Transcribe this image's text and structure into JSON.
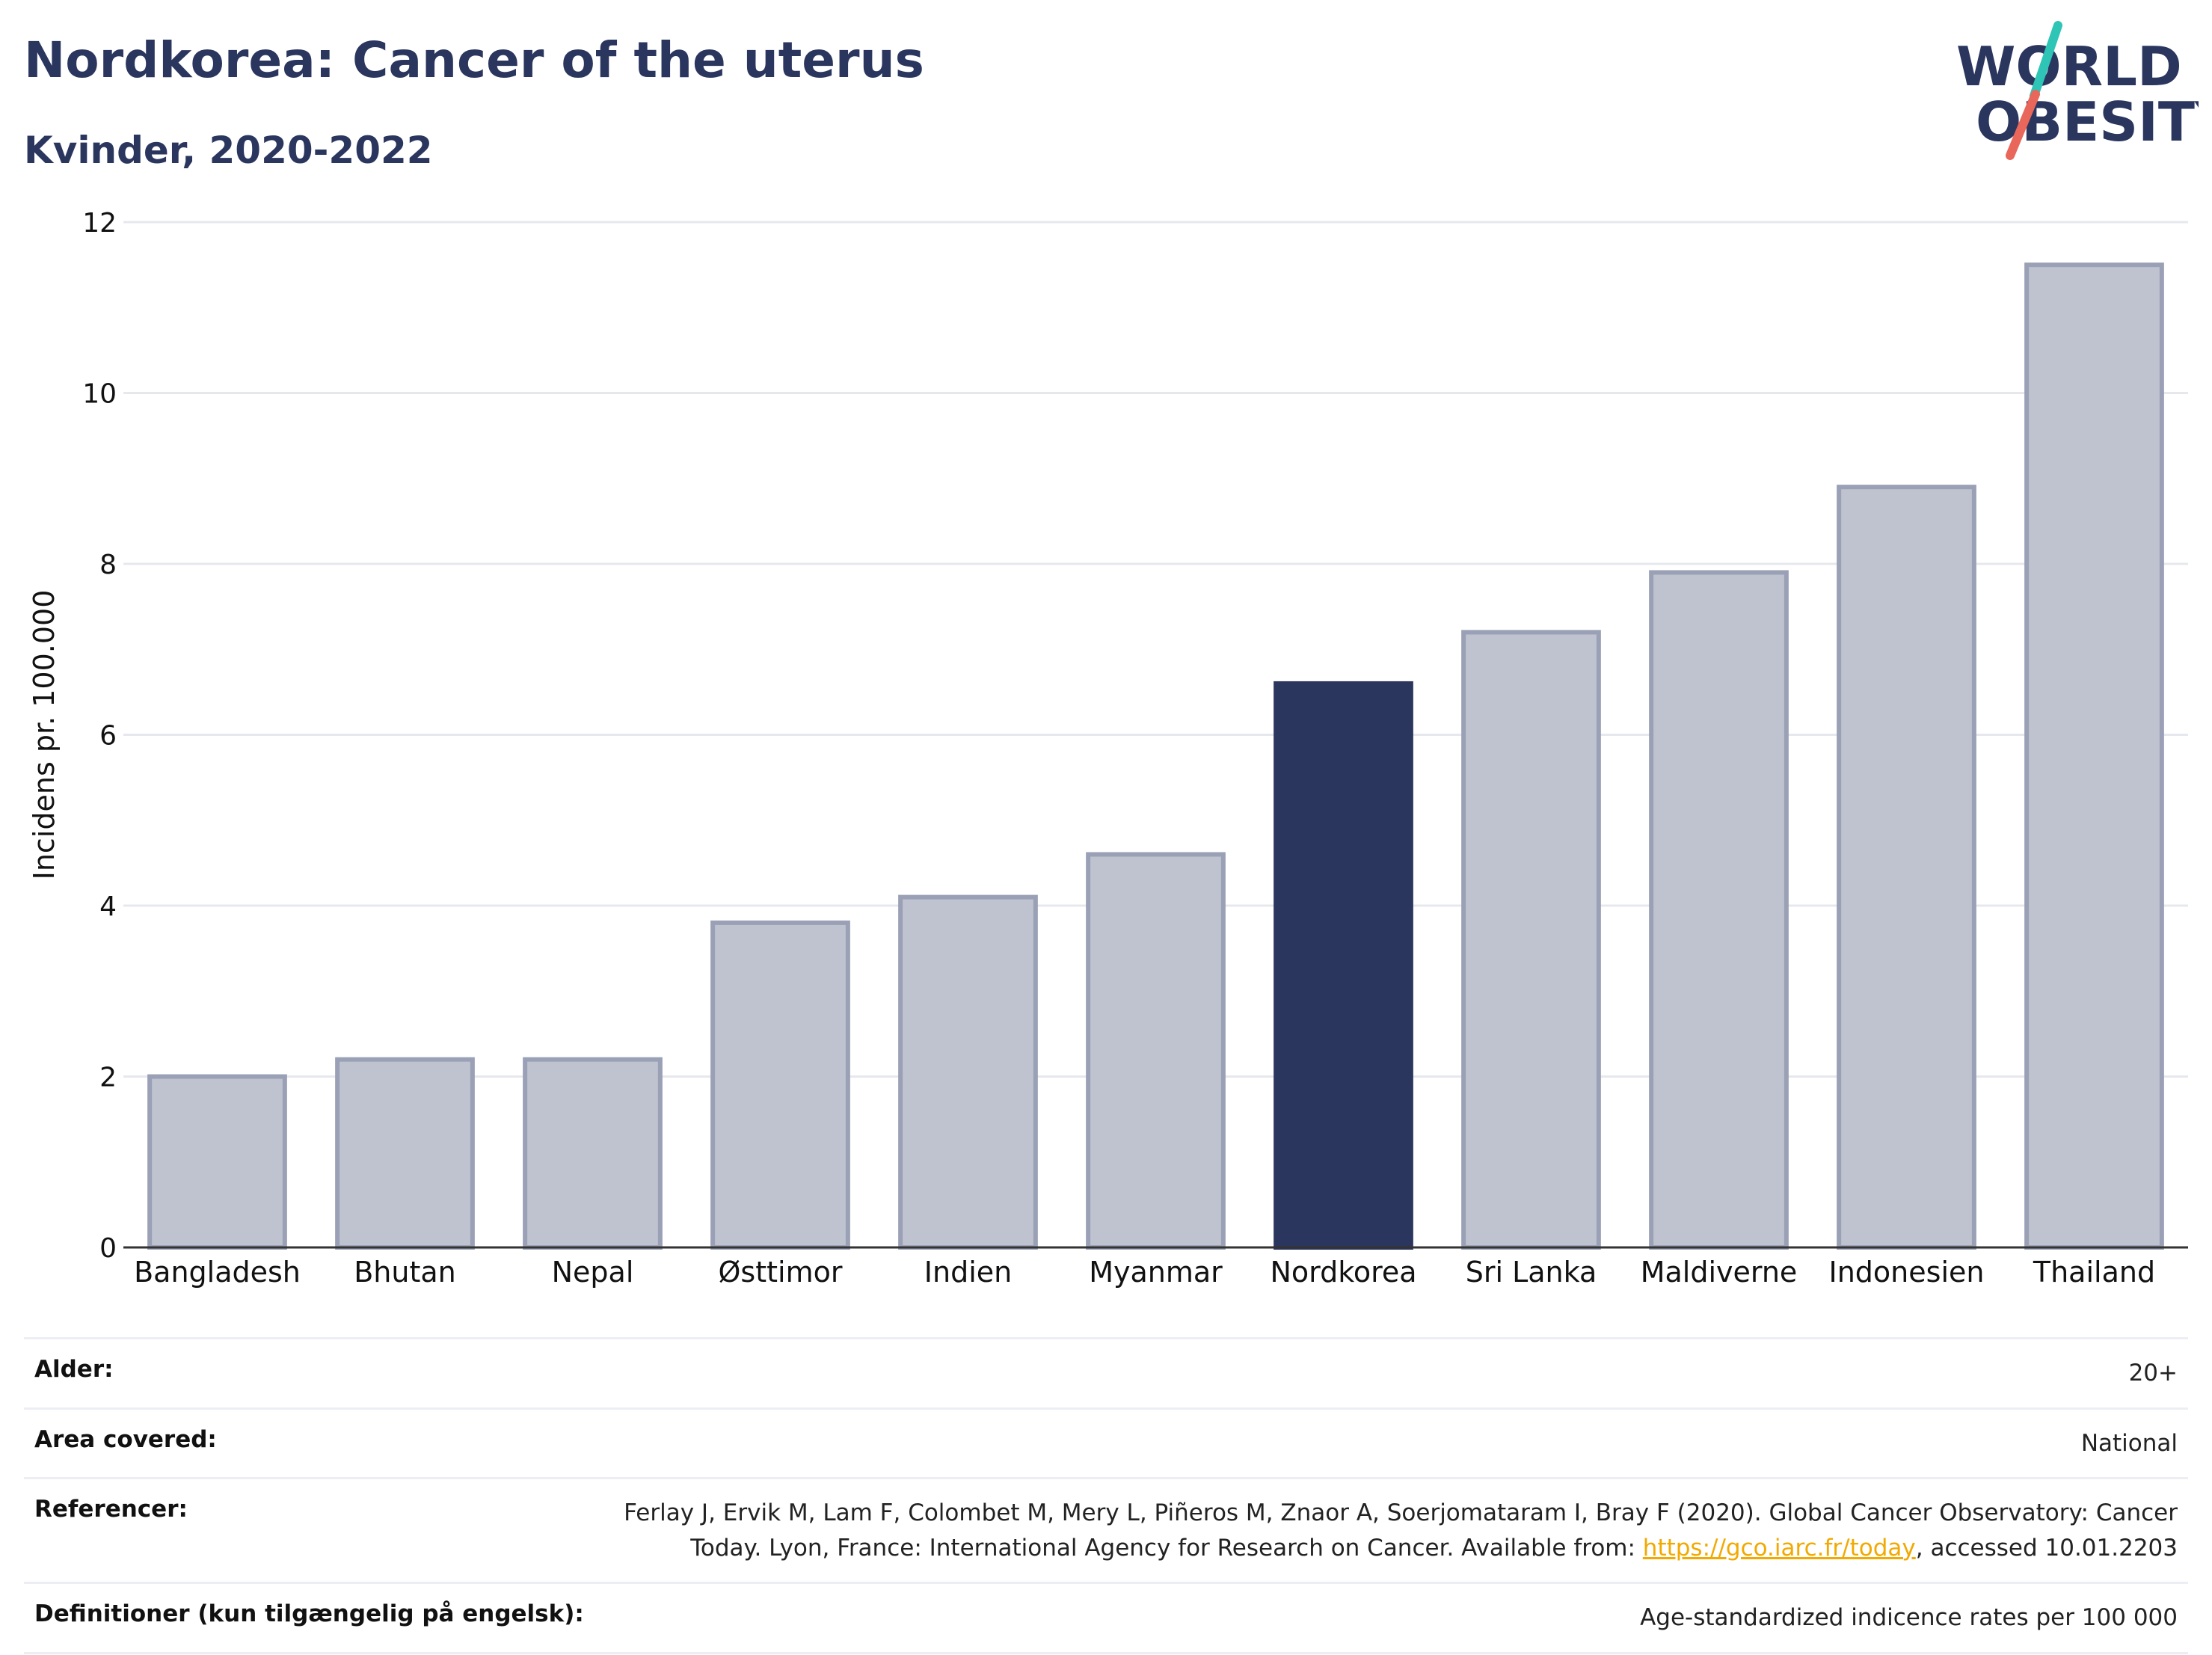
{
  "header": {
    "title": "Nordkorea: Cancer of the uterus",
    "subtitle": "Kvinder, 2020-2022"
  },
  "logo": {
    "line1": "WORLD",
    "line2": "OBESITY"
  },
  "colors": {
    "highlight": "#2b365f",
    "bar": "#bfc2cf",
    "bar_border": "#9aa0b5",
    "link": "#f2a900",
    "title": "#2b365f"
  },
  "chart_data": {
    "type": "bar",
    "categories": [
      "Bangladesh",
      "Bhutan",
      "Nepal",
      "Østtimor",
      "Indien",
      "Myanmar",
      "Nordkorea",
      "Sri Lanka",
      "Maldiverne",
      "Indonesien",
      "Thailand"
    ],
    "values": [
      2.0,
      2.2,
      2.2,
      3.8,
      4.1,
      4.6,
      6.6,
      7.2,
      7.9,
      8.9,
      11.5
    ],
    "highlight": "Nordkorea",
    "ylabel": "Incidens pr. 100.000",
    "ylim": [
      0,
      12
    ],
    "yticks": [
      0,
      2,
      4,
      6,
      8,
      10,
      12
    ],
    "grid": true
  },
  "footer": {
    "age": {
      "label": "Alder:",
      "value": "20+"
    },
    "area": {
      "label": "Area covered:",
      "value": "National"
    },
    "references": {
      "label": "Referencer:",
      "text_before": "Ferlay J, Ervik M, Lam F, Colombet M, Mery L, Piñeros M, Znaor A, Soerjomataram I, Bray F (2020). Global Cancer Observatory: Cancer Today. Lyon, France: International Agency for Research on Cancer. Available from: ",
      "link": "https://gco.iarc.fr/today",
      "text_after": ", accessed 10.01.2203"
    },
    "definitions": {
      "label": "Definitioner (kun tilgængelig på engelsk):",
      "value": "Age-standardized indicence rates per 100 000"
    }
  }
}
